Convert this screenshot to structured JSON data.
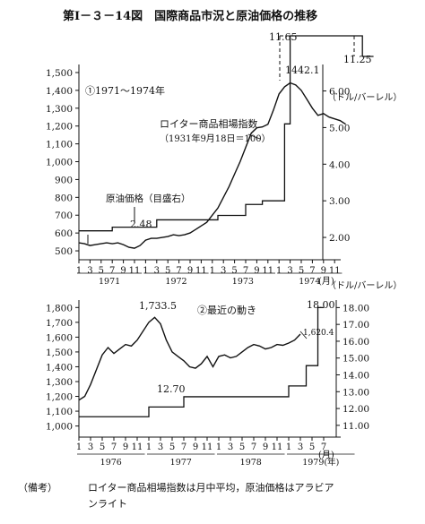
{
  "title": "第Ⅰ－３－14図　国際商品市況と原油価格の推移",
  "note": {
    "label": "（備考）",
    "line1": "ロイター商品相場指数は月中平均，原油価格はアラビア",
    "line2": "ンライト"
  },
  "chart_data": [
    {
      "type": "line",
      "panel_label": "①1971～1974年",
      "left_axis": {
        "ticks": [
          500,
          600,
          700,
          800,
          900,
          1000,
          1100,
          1200,
          1300,
          1400,
          1500
        ],
        "tick_labels": [
          "500",
          "600",
          "700",
          "800",
          "900",
          "1,000",
          "1,100",
          "1,200",
          "1,300",
          "1,400",
          "1,500"
        ],
        "ylim": [
          450,
          1520
        ]
      },
      "right_axis": {
        "unit": "（ドル/バーレル）",
        "ticks": [
          2,
          3,
          4,
          5,
          6
        ],
        "tick_labels": [
          "2.00",
          "3.00",
          "4.00",
          "5.00",
          "6.00"
        ],
        "ylim": [
          1.39,
          6.6
        ]
      },
      "x_tick_labels": [
        "1",
        "3",
        "5",
        "7",
        "9",
        "11",
        "1",
        "3",
        "5",
        "7",
        "9",
        "11",
        "1",
        "3",
        "5",
        "7",
        "9",
        "11",
        "1",
        "3",
        "5",
        "7",
        "9",
        "11"
      ],
      "x_unit": "(月)",
      "years": [
        "1971",
        "1972",
        "1973",
        "1974"
      ],
      "series": [
        {
          "name": "ロイター商品相場指数（1931年9月18日＝100）",
          "axis": "left",
          "values": [
            545,
            540,
            530,
            535,
            540,
            545,
            540,
            545,
            535,
            520,
            515,
            530,
            560,
            570,
            570,
            575,
            580,
            590,
            585,
            590,
            600,
            620,
            640,
            660,
            700,
            740,
            800,
            860,
            930,
            1000,
            1080,
            1160,
            1190,
            1195,
            1210,
            1290,
            1380,
            1420,
            1442.1,
            1430,
            1400,
            1350,
            1300,
            1260,
            1270,
            1250,
            1240,
            1230,
            1210
          ]
        },
        {
          "name": "原油価格（目盛右）",
          "axis": "right",
          "steps": [
            {
              "x": [
                0,
                6
              ],
              "value": 2.18
            },
            {
              "x": [
                6,
                14
              ],
              "value": 2.28
            },
            {
              "x": [
                14,
                25
              ],
              "value": 2.48
            },
            {
              "x": [
                25,
                30
              ],
              "value": 2.6
            },
            {
              "x": [
                30,
                33
              ],
              "value": 2.9
            },
            {
              "x": [
                33,
                37
              ],
              "value": 3.0
            },
            {
              "x": [
                37,
                38
              ],
              "value": 5.1
            },
            {
              "x": [
                38,
                51
              ],
              "value": 11.65,
              "off_scale": true
            },
            {
              "x": [
                51,
                53
              ],
              "value": 11.25,
              "off_scale": true
            }
          ]
        }
      ],
      "annotations": [
        "11.65",
        "11.25",
        "1442.1",
        "2.48"
      ],
      "labels": {
        "index_name": "ロイター商品相場指数",
        "index_base": "（1931年9月18日＝100）",
        "oil_name": "原油価格（目盛右）"
      }
    },
    {
      "type": "line",
      "panel_label": "②最近の動き",
      "left_axis": {
        "ticks": [
          1000,
          1100,
          1200,
          1300,
          1400,
          1500,
          1600,
          1700,
          1800
        ],
        "tick_labels": [
          "1,000",
          "1,100",
          "1,200",
          "1,300",
          "1,400",
          "1,500",
          "1,600",
          "1,700",
          "1,800"
        ],
        "ylim": [
          925,
          1820
        ]
      },
      "right_axis": {
        "unit": "（ドル/バーレル）",
        "ticks": [
          11,
          12,
          13,
          14,
          15,
          16,
          17,
          18
        ],
        "tick_labels": [
          "11.00",
          "12.00",
          "13.00",
          "14.00",
          "15.00",
          "16.00",
          "17.00",
          "18.00"
        ],
        "ylim": [
          10.3,
          18.18
        ]
      },
      "x_tick_labels": [
        "1",
        "3",
        "5",
        "7",
        "9",
        "11",
        "1",
        "3",
        "5",
        "7",
        "9",
        "11",
        "1",
        "3",
        "5",
        "7",
        "9",
        "11",
        "1",
        "3",
        "5",
        "7"
      ],
      "x_unit": "(月)",
      "years": [
        "1976",
        "1977",
        "1978",
        "1979(年)"
      ],
      "series": [
        {
          "name": "ロイター商品相場指数",
          "axis": "left",
          "values": [
            1175,
            1200,
            1280,
            1380,
            1480,
            1530,
            1490,
            1520,
            1550,
            1540,
            1580,
            1640,
            1700,
            1733.5,
            1690,
            1580,
            1500,
            1470,
            1440,
            1400,
            1390,
            1420,
            1470,
            1400,
            1470,
            1480,
            1460,
            1470,
            1500,
            1530,
            1550,
            1540,
            1520,
            1530,
            1550,
            1545,
            1560,
            1580,
            1620.4
          ]
        },
        {
          "name": "原油価格",
          "axis": "right",
          "steps": [
            {
              "x": [
                0,
                12
              ],
              "value": 11.51
            },
            {
              "x": [
                12,
                18
              ],
              "value": 12.09
            },
            {
              "x": [
                18,
                36
              ],
              "value": 12.7
            },
            {
              "x": [
                36,
                39
              ],
              "value": 13.34
            },
            {
              "x": [
                39,
                41
              ],
              "value": 14.55
            },
            {
              "x": [
                41,
                42
              ],
              "value": 18.0
            }
          ]
        }
      ],
      "annotations": [
        "1,733.5",
        "12.70",
        "1,620.4",
        "18.00"
      ]
    }
  ]
}
